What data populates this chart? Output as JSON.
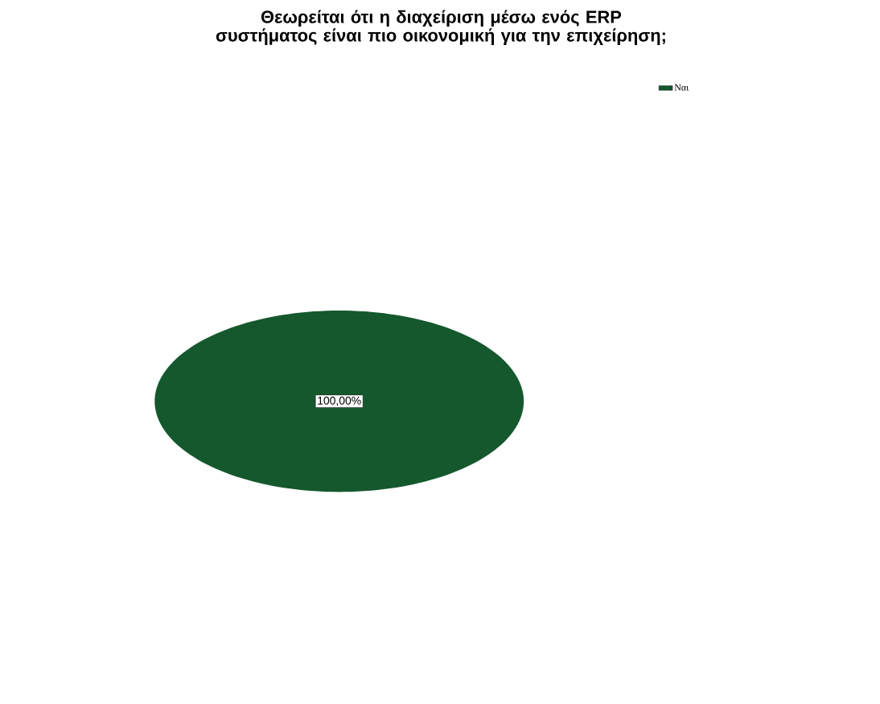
{
  "chart_data": {
    "type": "pie",
    "title": "Θεωρείται ότι η διαχείριση μέσω ενός ERP συστήματος είναι πιο οικονομική για την επιχείρηση;",
    "categories": [
      "Ναι"
    ],
    "values": [
      100
    ],
    "colors": [
      "#15582e"
    ],
    "value_labels": [
      "100,00%"
    ],
    "legend": "top right"
  }
}
